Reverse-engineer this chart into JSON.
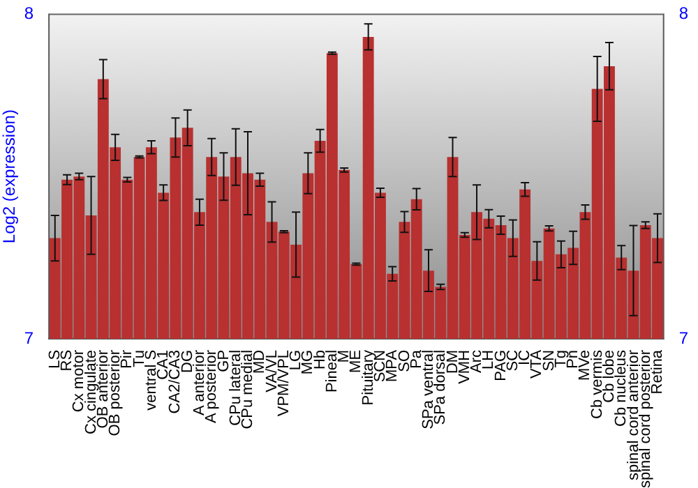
{
  "chart_data": {
    "type": "bar",
    "ylabel": "Log2 (expression)",
    "categories": [
      "LS",
      "RS",
      "Cx motor",
      "Cx cingulate",
      "OB anterior",
      "OB posterior",
      "Pir",
      "Tu",
      "ventral S",
      "CA1",
      "CA2/CA3",
      "DG",
      "A anterior",
      "A posterior",
      "GP",
      "CPu lateral",
      "CPu medial",
      "MD",
      "VA/VL",
      "VPM/VPL",
      "LG",
      "MG",
      "Hb",
      "Pineal",
      "M",
      "ME",
      "Pituitary",
      "SCN",
      "MPA",
      "SO",
      "Pa",
      "SPa ventral",
      "SPa dorsal",
      "DM",
      "VMH",
      "Arc",
      "LH",
      "PAG",
      "SC",
      "IC",
      "VTA",
      "SN",
      "Tg",
      "Pn",
      "MVe",
      "Cb vermis",
      "Cb lobe",
      "Cb nucleus",
      "spinal cord anterior",
      "spinal cord posterior",
      "Retina"
    ],
    "values": [
      7.31,
      7.49,
      7.5,
      7.38,
      7.8,
      7.59,
      7.49,
      7.56,
      7.59,
      7.45,
      7.62,
      7.65,
      7.39,
      7.56,
      7.5,
      7.56,
      7.51,
      7.49,
      7.36,
      7.33,
      7.29,
      7.51,
      7.61,
      7.88,
      7.52,
      7.23,
      7.93,
      7.45,
      7.2,
      7.36,
      7.43,
      7.21,
      7.16,
      7.56,
      7.32,
      7.39,
      7.37,
      7.35,
      7.31,
      7.46,
      7.24,
      7.34,
      7.26,
      7.28,
      7.39,
      7.77,
      7.84,
      7.25,
      7.21,
      7.35,
      7.31
    ],
    "errors": [
      0.07,
      0.015,
      0.01,
      0.12,
      0.06,
      0.04,
      0.007,
      0.003,
      0.02,
      0.024,
      0.06,
      0.055,
      0.04,
      0.057,
      0.073,
      0.087,
      0.128,
      0.02,
      0.062,
      0.003,
      0.1,
      0.063,
      0.035,
      0.003,
      0.006,
      0.003,
      0.04,
      0.014,
      0.022,
      0.032,
      0.033,
      0.064,
      0.008,
      0.06,
      0.007,
      0.084,
      0.028,
      0.028,
      0.056,
      0.021,
      0.059,
      0.008,
      0.041,
      0.051,
      0.022,
      0.1,
      0.073,
      0.037,
      0.139,
      0.01,
      0.075
    ],
    "color": "#b83030",
    "ylim": [
      7,
      8
    ],
    "yticks": [
      7,
      8
    ],
    "y2lim": [
      7,
      8
    ],
    "y2ticks": [
      7,
      8
    ],
    "grid": false,
    "legend": false
  }
}
